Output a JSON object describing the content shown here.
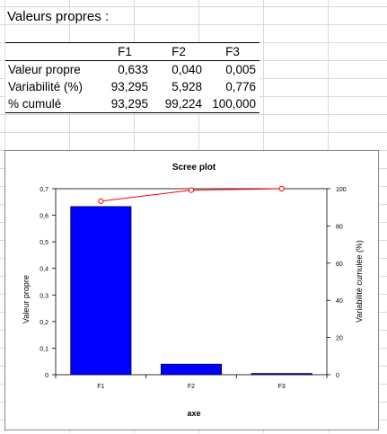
{
  "sheet": {
    "title": "Valeurs propres :",
    "table": {
      "columns": [
        "F1",
        "F2",
        "F3"
      ],
      "rows": [
        {
          "label": "Valeur propre",
          "values": [
            "0,633",
            "0,040",
            "0,005"
          ]
        },
        {
          "label": "Variabilité (%)",
          "values": [
            "93,295",
            "5,928",
            "0,776"
          ]
        },
        {
          "label": "% cumulé",
          "values": [
            "93,295",
            "99,224",
            "100,000"
          ]
        }
      ]
    }
  },
  "chart_data": {
    "type": "bar",
    "title": "Scree plot",
    "xlabel": "axe",
    "ylabel": "Valeur propre",
    "y2label": "Variabilité cumulée (%)",
    "categories": [
      "F1",
      "F2",
      "F3"
    ],
    "series": [
      {
        "values": [
          0.633,
          0.04,
          0.005
        ],
        "axis": "left",
        "kind": "bar",
        "color": "#0000ff"
      },
      {
        "values": [
          93.295,
          99.224,
          100.0
        ],
        "axis": "right",
        "kind": "line",
        "color": "#ff0000"
      }
    ],
    "ylim": [
      0,
      0.7
    ],
    "y2lim": [
      0,
      100
    ],
    "yticks": [
      "0",
      "0,1",
      "0,2",
      "0,3",
      "0,4",
      "0,5",
      "0,6",
      "0,7"
    ],
    "y2ticks": [
      "0",
      "20",
      "40",
      "60",
      "80",
      "100"
    ],
    "grid": false,
    "legend": "none"
  }
}
